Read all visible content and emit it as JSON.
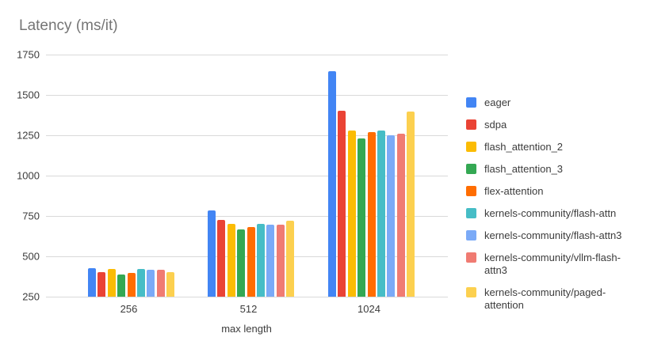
{
  "chart_data": {
    "type": "bar",
    "title": "Latency (ms/it)",
    "xlabel": "max length",
    "ylabel": "",
    "categories": [
      "256",
      "512",
      "1024"
    ],
    "series": [
      {
        "name": "eager",
        "color": "#4285F4",
        "values": [
          425,
          785,
          1645
        ]
      },
      {
        "name": "sdpa",
        "color": "#EA4335",
        "values": [
          403,
          728,
          1400
        ]
      },
      {
        "name": "flash_attention_2",
        "color": "#FBBC04",
        "values": [
          420,
          702,
          1280
        ]
      },
      {
        "name": "flash_attention_3",
        "color": "#34A853",
        "values": [
          388,
          668,
          1230
        ]
      },
      {
        "name": "flex-attention",
        "color": "#FF6D01",
        "values": [
          395,
          680,
          1270
        ]
      },
      {
        "name": "kernels-community/flash-attn",
        "color": "#46BDC6",
        "values": [
          424,
          700,
          1278
        ]
      },
      {
        "name": "kernels-community/flash-attn3",
        "color": "#7BAAF7",
        "values": [
          415,
          695,
          1250
        ]
      },
      {
        "name": "kernels-community/vllm-flash-attn3",
        "color": "#F07B72",
        "values": [
          418,
          694,
          1260
        ]
      },
      {
        "name": "kernels-community/paged-attention",
        "color": "#FCD04F",
        "values": [
          402,
          720,
          1395
        ]
      }
    ],
    "y_ticks": [
      250,
      500,
      750,
      1000,
      1250,
      1500,
      1750
    ],
    "ylim": [
      250,
      1750
    ],
    "grid": true,
    "legend_position": "right",
    "colors": {
      "title_text": "#757575",
      "axis_text": "#3c3c3c",
      "gridline": "#d9d9d9",
      "background": "#ffffff"
    }
  }
}
